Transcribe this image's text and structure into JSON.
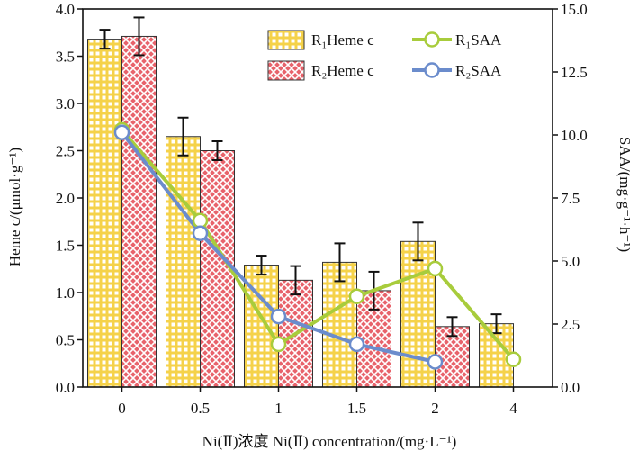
{
  "chart_data": {
    "type": "bar",
    "categories": [
      "0",
      "0.5",
      "1",
      "1.5",
      "2",
      "4"
    ],
    "xlabel": "Ni(Ⅱ)浓度 Ni(Ⅱ) concentration/(mg·L⁻¹)",
    "ylabel": "Heme c/(μmol·g⁻¹)",
    "y2label": "SAA/(mg·g⁻¹·h⁻¹)",
    "ylim": [
      0,
      4.0
    ],
    "y2lim": [
      0,
      15.0
    ],
    "yticks": [
      "0.0",
      "0.5",
      "1.0",
      "1.5",
      "2.0",
      "2.5",
      "3.0",
      "3.5",
      "4.0"
    ],
    "y2ticks": [
      "0.0",
      "2.5",
      "5.0",
      "7.5",
      "10.0",
      "12.5",
      "15.0"
    ],
    "legend_position": "top-right",
    "series": [
      {
        "name": "R₁Heme c",
        "kind": "bar",
        "axis": "left",
        "color": "#f5d24a",
        "pattern": "grid",
        "values": [
          3.68,
          2.65,
          1.29,
          1.32,
          1.54,
          0.67
        ],
        "errors": [
          0.1,
          0.2,
          0.1,
          0.2,
          0.2,
          0.1
        ]
      },
      {
        "name": "R₂Heme c",
        "kind": "bar",
        "axis": "left",
        "color": "#e8636b",
        "pattern": "crosshatch",
        "values": [
          3.71,
          2.5,
          1.13,
          1.02,
          0.64,
          null
        ],
        "errors": [
          0.2,
          0.1,
          0.15,
          0.2,
          0.1,
          null
        ]
      },
      {
        "name": "R₁SAA",
        "kind": "line",
        "axis": "right",
        "color": "#a8cc3c",
        "values": [
          10.2,
          6.6,
          1.7,
          3.6,
          4.7,
          1.1
        ]
      },
      {
        "name": "R₂SAA",
        "kind": "line",
        "axis": "right",
        "color": "#6b8ccc",
        "values": [
          10.1,
          6.1,
          2.8,
          1.7,
          1.0,
          null
        ]
      }
    ]
  }
}
